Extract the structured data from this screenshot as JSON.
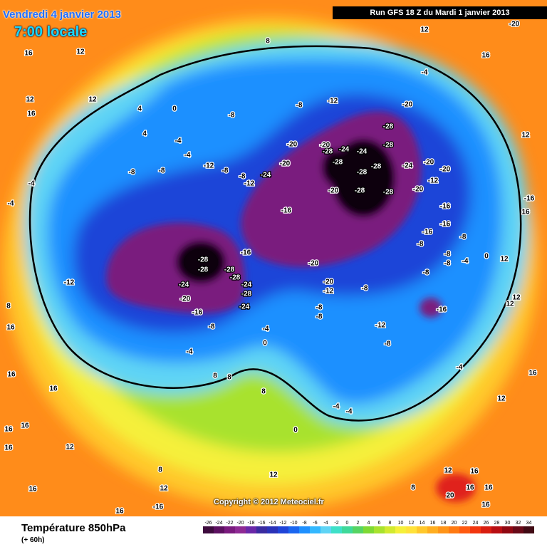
{
  "header": {
    "date": "Vendredi 4 janvier 2013",
    "hour": "7:00 locale",
    "run": "Run GFS 18 Z du Mardi 1 janvier 2013"
  },
  "copyright": "Copyright © 2012 Meteociel.fr",
  "footer": {
    "title": "Température 850hPa",
    "subtitle": "(+ 60h)"
  },
  "colorbar": {
    "ticks": [
      -26,
      -24,
      -22,
      -20,
      -18,
      -16,
      -14,
      -12,
      -10,
      -8,
      -6,
      -4,
      -2,
      0,
      2,
      4,
      6,
      8,
      10,
      12,
      14,
      16,
      18,
      20,
      22,
      24,
      26,
      28,
      30,
      32,
      34
    ],
    "colors": [
      "#3d0b3d",
      "#5c1060",
      "#7a1a7e",
      "#8e2a94",
      "#6a28a8",
      "#3a2ba0",
      "#2a32b8",
      "#1f44d8",
      "#1a66f0",
      "#1e90ff",
      "#33b8ff",
      "#5fd4f5",
      "#3ee0c8",
      "#3fd99a",
      "#56d463",
      "#7ed934",
      "#a8e22e",
      "#d2ea30",
      "#f5f03a",
      "#ffe23a",
      "#ffc82c",
      "#ffae20",
      "#ff9418",
      "#ff7a12",
      "#ff5a10",
      "#f2360e",
      "#d81e10",
      "#b80e12",
      "#900812",
      "#680a18",
      "#400a14"
    ]
  },
  "map": {
    "labels": [
      "16",
      "12",
      "12",
      "16",
      "12",
      "4",
      "4",
      "0",
      "-8",
      "-8",
      "-12",
      "-20",
      "-4",
      "16",
      "-20",
      "12",
      "8",
      "12",
      "-16",
      "16",
      "-20",
      "-20",
      "-24",
      "-24",
      "-28",
      "-28",
      "-28",
      "-28",
      "-28",
      "-28",
      "-28",
      "-28",
      "-20",
      "-24",
      "-20",
      "-20",
      "-20",
      "-12",
      "-16",
      "-16",
      "-16",
      "-8",
      "-16",
      "-24",
      "-20",
      "-12",
      "-28",
      "-28",
      "-28",
      "-28",
      "-16",
      "-24",
      "-20",
      "-24",
      "-28",
      "-24",
      "-16",
      "-8",
      "-20",
      "-20",
      "-12",
      "-8",
      "-8",
      "-8",
      "-12",
      "-8",
      "-16",
      "-8",
      "-8",
      "-8",
      "-8",
      "-4",
      "0",
      "12",
      "12",
      "-12",
      "-8",
      "-8",
      "-8",
      "-8",
      "-4",
      "-4",
      "-12",
      "-4",
      "0",
      "-4",
      "8",
      "8",
      "8",
      "0",
      "-4",
      "-4",
      "-4",
      "12",
      "16",
      "12",
      "8",
      "16",
      "16",
      "16",
      "16",
      "16",
      "16",
      "16",
      "12",
      "8",
      "12",
      "16",
      "-16",
      "8",
      "12",
      "12",
      "16",
      "16",
      "20",
      "16",
      "16",
      "-4",
      "-4"
    ]
  }
}
